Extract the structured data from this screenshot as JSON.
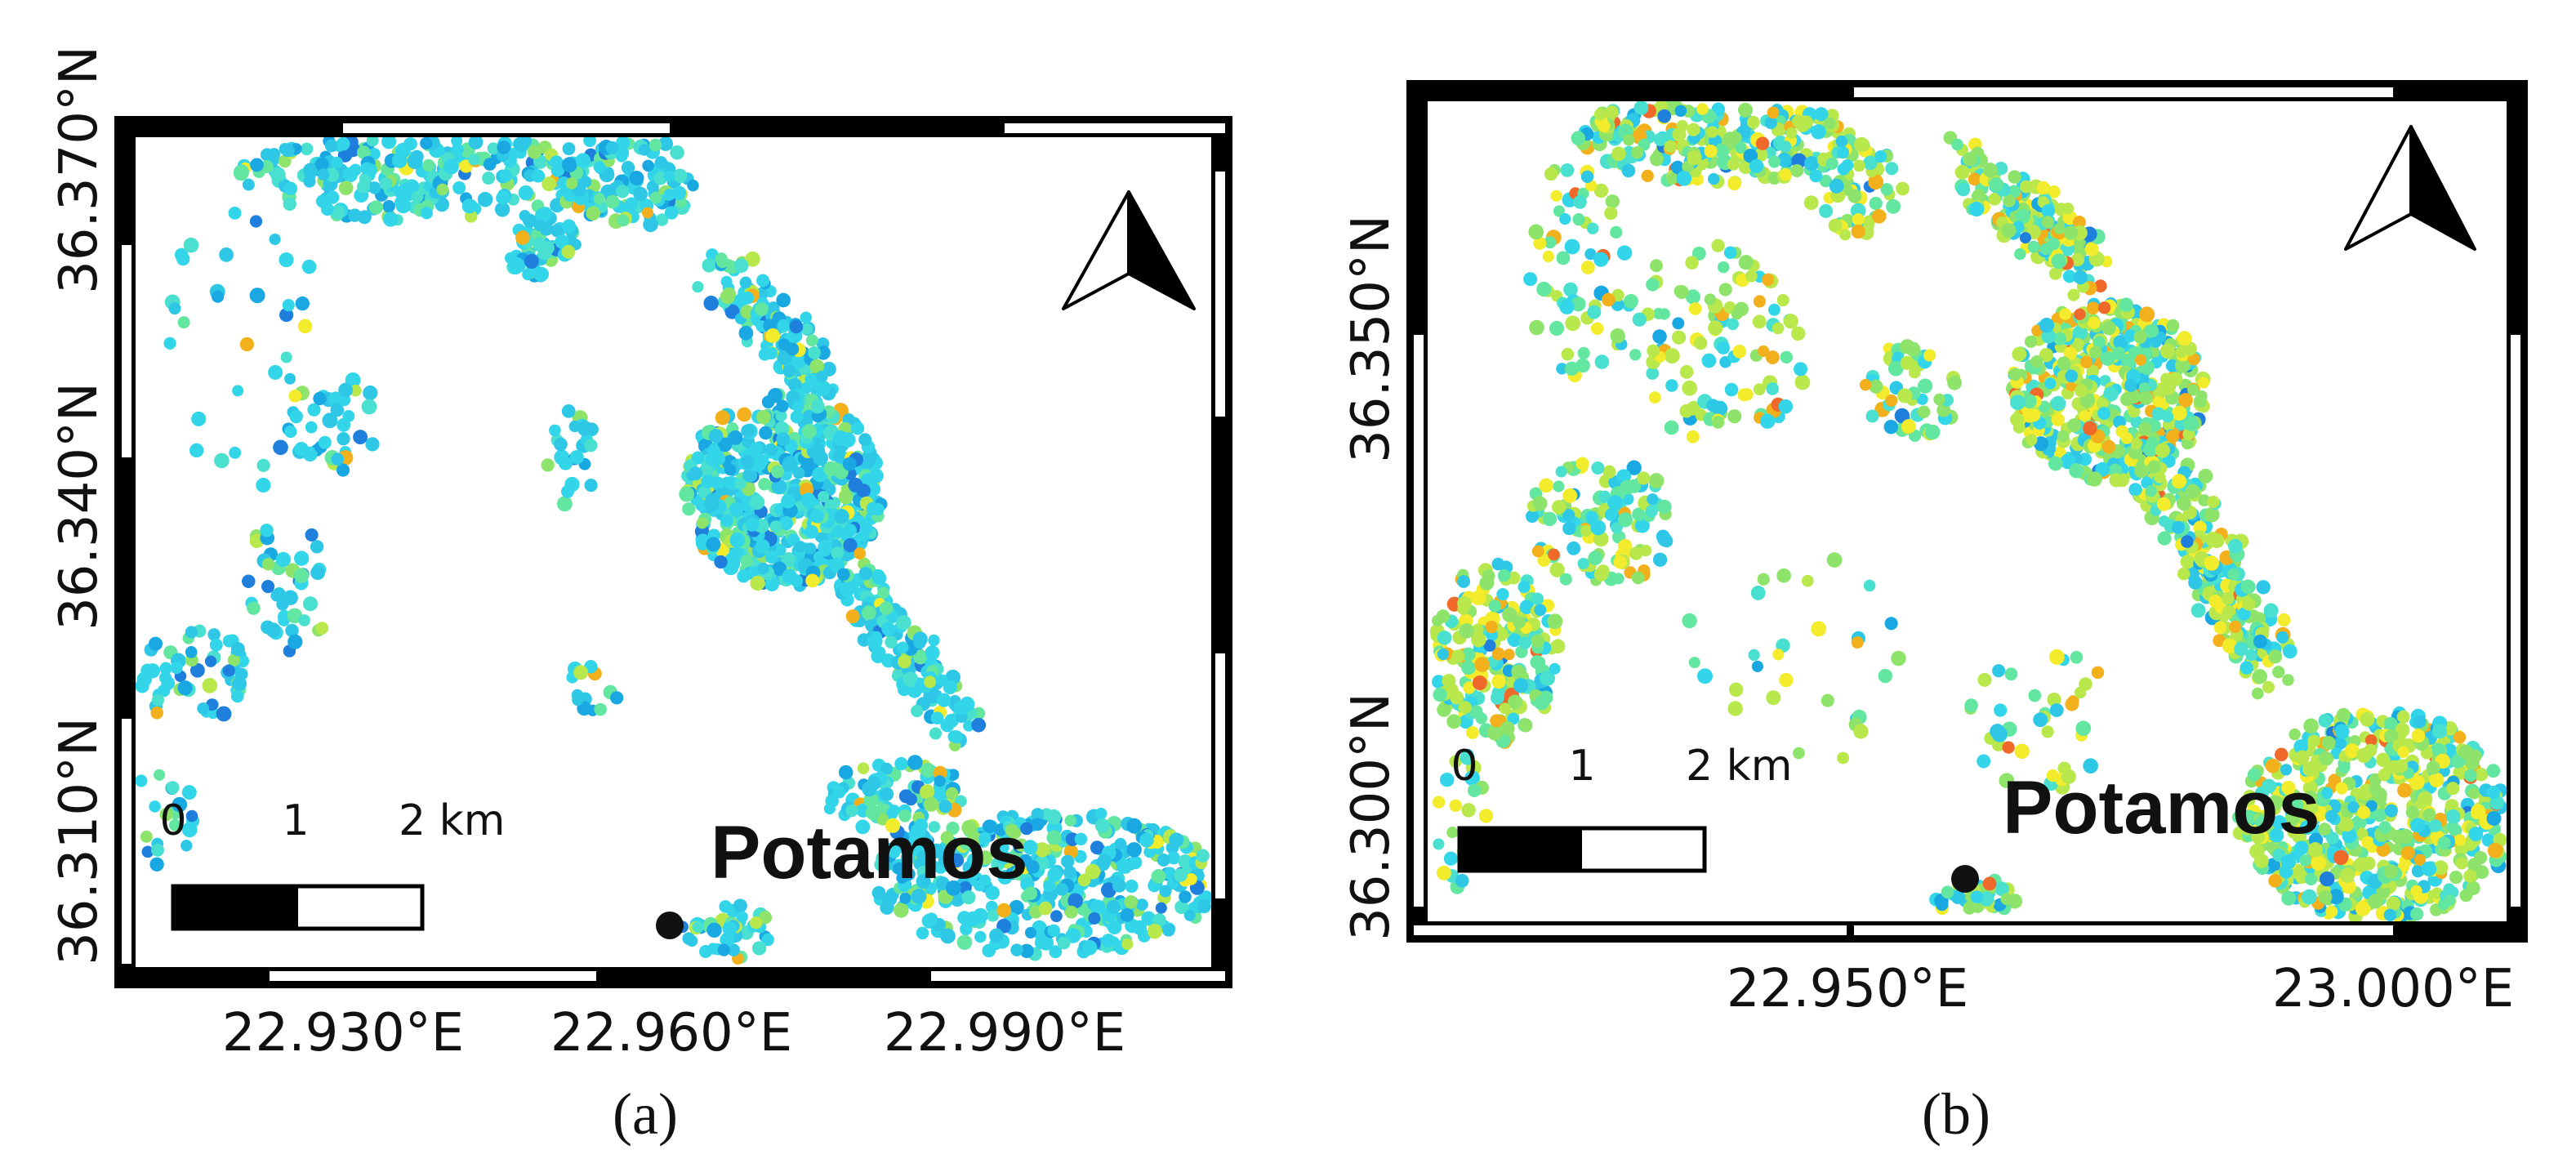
{
  "panels": [
    {
      "id": "a",
      "caption": "(a)",
      "town": "Potamos",
      "lat_ticks": [
        "36.310°N",
        "36.340°N",
        "36.370°N"
      ],
      "lon_ticks": [
        "22.930°E",
        "22.960°E",
        "22.990°E"
      ],
      "scale": {
        "zero": "0",
        "one": "1",
        "two": "2 km"
      },
      "palette": [
        "#33d6e8",
        "#2fc7e6",
        "#49e0d0",
        "#1aa8e2",
        "#1f7fdc",
        "#62e6a0",
        "#8ee46a",
        "#b8e84c",
        "#f2ec2c",
        "#f2b11c",
        "#ef6a2a"
      ],
      "weights": [
        30,
        18,
        10,
        8,
        5,
        7,
        5,
        3,
        1,
        1,
        0
      ]
    },
    {
      "id": "b",
      "caption": "(b)",
      "town": "Potamos",
      "lat_ticks": [
        "36.300°N",
        "36.350°N"
      ],
      "lon_ticks": [
        "22.950°E",
        "23.000°E"
      ],
      "scale": {
        "zero": "0",
        "one": "1",
        "two": "2 km"
      },
      "palette": [
        "#33d6e8",
        "#2fc7e6",
        "#49e0d0",
        "#1aa8e2",
        "#1f7fdc",
        "#62e6a0",
        "#8ee46a",
        "#b8e84c",
        "#f2ec2c",
        "#f2b11c",
        "#ef6a2a"
      ],
      "weights": [
        8,
        6,
        7,
        2,
        1,
        12,
        14,
        18,
        9,
        4,
        2
      ]
    }
  ]
}
